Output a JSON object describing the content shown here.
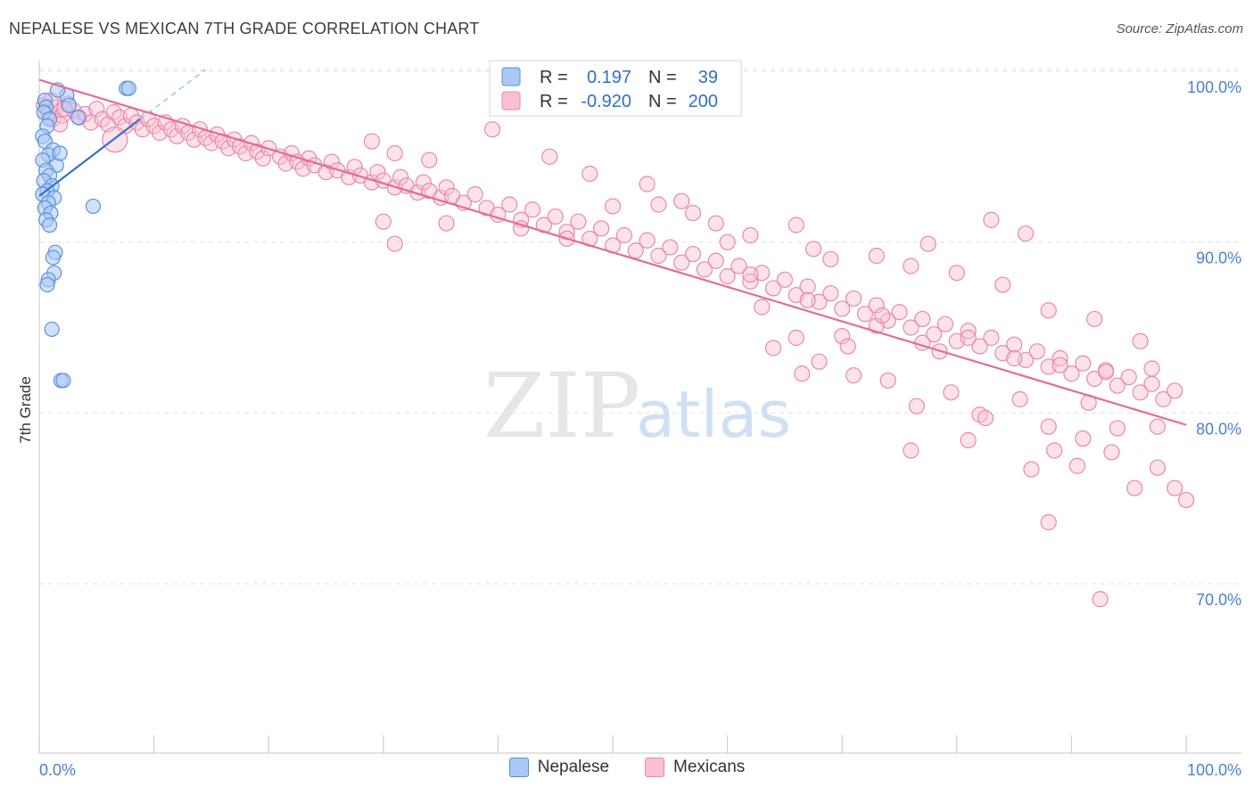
{
  "header": {
    "title": "NEPALESE VS MEXICAN 7TH GRADE CORRELATION CHART",
    "source": "Source: ZipAtlas.com"
  },
  "watermark": {
    "zip": "ZIP",
    "atlas": "atlas"
  },
  "legend_stats": [
    {
      "r_label": "R =",
      "r_value": "0.197",
      "n_label": "N =",
      "n_value": "39",
      "color": "#a9c8f5",
      "stroke": "#5b8fd9"
    },
    {
      "r_label": "R =",
      "r_value": "-0.920",
      "n_label": "N =",
      "n_value": "200",
      "color": "#f9c0d2",
      "stroke": "#e987a8"
    }
  ],
  "bottom_legend": [
    {
      "label": "Nepalese",
      "color": "#a9c8f5",
      "stroke": "#5b8fd9"
    },
    {
      "label": "Mexicans",
      "color": "#f9c0d2",
      "stroke": "#e987a8"
    }
  ],
  "chart_data": {
    "type": "scatter",
    "title": "NEPALESE VS MEXICAN 7TH GRADE CORRELATION CHART",
    "xlabel": "",
    "ylabel": "7th Grade",
    "xlim": [
      0,
      100
    ],
    "ylim": [
      60,
      101
    ],
    "x_tick_labels": [
      "0.0%",
      "100.0%"
    ],
    "y_ticks": [
      70,
      80,
      90,
      100
    ],
    "y_tick_labels": [
      "70.0%",
      "80.0%",
      "90.0%",
      "100.0%"
    ],
    "grid": true,
    "series": [
      {
        "name": "Nepalese",
        "color": "#5b8fd9",
        "fill": "#a9c8f5",
        "trend": {
          "x": [
            0,
            8.8
          ],
          "y": [
            92.7,
            97.2
          ]
        },
        "trend_ext": {
          "x": [
            8.8,
            14.5
          ],
          "y": [
            97.2,
            100.1
          ]
        },
        "points": [
          [
            0.5,
            98.3
          ],
          [
            0.6,
            97.9
          ],
          [
            0.4,
            97.6
          ],
          [
            0.9,
            97.2
          ],
          [
            0.7,
            96.8
          ],
          [
            0.3,
            96.2
          ],
          [
            0.5,
            95.9
          ],
          [
            1.2,
            95.4
          ],
          [
            0.8,
            95.1
          ],
          [
            0.3,
            94.8
          ],
          [
            1.5,
            94.5
          ],
          [
            0.6,
            94.2
          ],
          [
            0.9,
            93.9
          ],
          [
            0.4,
            93.6
          ],
          [
            1.1,
            93.3
          ],
          [
            0.7,
            93.0
          ],
          [
            0.3,
            92.8
          ],
          [
            1.3,
            92.6
          ],
          [
            0.8,
            92.3
          ],
          [
            0.5,
            92.0
          ],
          [
            1.0,
            91.7
          ],
          [
            0.6,
            91.3
          ],
          [
            0.9,
            91.0
          ],
          [
            1.4,
            89.4
          ],
          [
            1.2,
            89.1
          ],
          [
            1.3,
            88.2
          ],
          [
            0.8,
            87.8
          ],
          [
            0.7,
            87.5
          ],
          [
            1.1,
            84.9
          ],
          [
            1.9,
            81.9
          ],
          [
            2.1,
            81.9
          ],
          [
            7.6,
            99.0
          ],
          [
            7.8,
            99.0
          ],
          [
            4.7,
            92.1
          ],
          [
            3.4,
            97.3
          ],
          [
            2.4,
            98.6
          ],
          [
            1.6,
            98.9
          ],
          [
            2.6,
            98.0
          ],
          [
            1.8,
            95.2
          ]
        ]
      },
      {
        "name": "Mexicans",
        "color": "#e987a8",
        "fill": "#f9c0d2",
        "trend": {
          "x": [
            0,
            100
          ],
          "y": [
            99.5,
            79.3
          ]
        },
        "points": [
          [
            0.4,
            98.0
          ],
          [
            0.8,
            97.6
          ],
          [
            1.2,
            97.2
          ],
          [
            1.5,
            97.9
          ],
          [
            2.0,
            97.4
          ],
          [
            2.5,
            98.1
          ],
          [
            3.0,
            97.7
          ],
          [
            3.5,
            97.3
          ],
          [
            1.0,
            98.3
          ],
          [
            1.8,
            96.9
          ],
          [
            2.2,
            97.8
          ],
          [
            4.0,
            97.5
          ],
          [
            4.5,
            97.0
          ],
          [
            5.0,
            97.8
          ],
          [
            5.5,
            97.2
          ],
          [
            6.0,
            96.9
          ],
          [
            6.5,
            97.6
          ],
          [
            7.0,
            97.3
          ],
          [
            7.5,
            96.8
          ],
          [
            8.0,
            97.4
          ],
          [
            8.5,
            97.0
          ],
          [
            9.0,
            96.6
          ],
          [
            9.5,
            97.2
          ],
          [
            10.0,
            96.8
          ],
          [
            10.5,
            96.4
          ],
          [
            11.0,
            97.0
          ],
          [
            11.5,
            96.6
          ],
          [
            12.0,
            96.2
          ],
          [
            12.5,
            96.8
          ],
          [
            13.0,
            96.4
          ],
          [
            13.5,
            96.0
          ],
          [
            14.0,
            96.6
          ],
          [
            14.5,
            96.1
          ],
          [
            15.0,
            95.8
          ],
          [
            15.5,
            96.3
          ],
          [
            16.0,
            95.9
          ],
          [
            16.5,
            95.5
          ],
          [
            17.0,
            96.0
          ],
          [
            17.5,
            95.6
          ],
          [
            18.0,
            95.2
          ],
          [
            18.5,
            95.8
          ],
          [
            19.0,
            95.3
          ],
          [
            19.5,
            94.9
          ],
          [
            20.0,
            95.5
          ],
          [
            21.0,
            95.0
          ],
          [
            21.5,
            94.6
          ],
          [
            22.0,
            95.2
          ],
          [
            22.5,
            94.7
          ],
          [
            23.0,
            94.3
          ],
          [
            23.5,
            94.9
          ],
          [
            24.0,
            94.5
          ],
          [
            25.0,
            94.1
          ],
          [
            25.5,
            94.7
          ],
          [
            26.0,
            94.2
          ],
          [
            27.0,
            93.8
          ],
          [
            27.5,
            94.4
          ],
          [
            28.0,
            93.9
          ],
          [
            29.0,
            93.5
          ],
          [
            29.5,
            94.1
          ],
          [
            30.0,
            93.6
          ],
          [
            31.0,
            93.2
          ],
          [
            31.5,
            93.8
          ],
          [
            32.0,
            93.3
          ],
          [
            33.0,
            92.9
          ],
          [
            33.5,
            93.5
          ],
          [
            34.0,
            93.0
          ],
          [
            35.0,
            92.6
          ],
          [
            35.5,
            93.2
          ],
          [
            36.0,
            92.7
          ],
          [
            37.0,
            92.3
          ],
          [
            38.0,
            92.8
          ],
          [
            39.0,
            92.0
          ],
          [
            40.0,
            91.6
          ],
          [
            41.0,
            92.2
          ],
          [
            42.0,
            91.3
          ],
          [
            43.0,
            91.9
          ],
          [
            44.0,
            91.0
          ],
          [
            45.0,
            91.5
          ],
          [
            46.0,
            90.6
          ],
          [
            47.0,
            91.2
          ],
          [
            48.0,
            90.2
          ],
          [
            49.0,
            90.8
          ],
          [
            50.0,
            89.8
          ],
          [
            51.0,
            90.4
          ],
          [
            52.0,
            89.5
          ],
          [
            53.0,
            90.1
          ],
          [
            54.0,
            89.2
          ],
          [
            55.0,
            89.7
          ],
          [
            56.0,
            88.8
          ],
          [
            57.0,
            89.3
          ],
          [
            58.0,
            88.4
          ],
          [
            59.0,
            88.9
          ],
          [
            60.0,
            88.0
          ],
          [
            61.0,
            88.6
          ],
          [
            62.0,
            87.7
          ],
          [
            63.0,
            88.2
          ],
          [
            64.0,
            87.3
          ],
          [
            65.0,
            87.8
          ],
          [
            66.0,
            86.9
          ],
          [
            67.0,
            87.4
          ],
          [
            68.0,
            86.5
          ],
          [
            69.0,
            87.0
          ],
          [
            70.0,
            86.1
          ],
          [
            71.0,
            86.7
          ],
          [
            72.0,
            85.8
          ],
          [
            73.0,
            86.3
          ],
          [
            74.0,
            85.4
          ],
          [
            75.0,
            85.9
          ],
          [
            76.0,
            85.0
          ],
          [
            77.0,
            85.5
          ],
          [
            78.0,
            84.6
          ],
          [
            79.0,
            85.2
          ],
          [
            80.0,
            84.2
          ],
          [
            81.0,
            84.8
          ],
          [
            82.0,
            83.9
          ],
          [
            83.0,
            84.4
          ],
          [
            84.0,
            83.5
          ],
          [
            85.0,
            84.0
          ],
          [
            86.0,
            83.1
          ],
          [
            87.0,
            83.6
          ],
          [
            88.0,
            82.7
          ],
          [
            89.0,
            83.2
          ],
          [
            90.0,
            82.3
          ],
          [
            91.0,
            82.9
          ],
          [
            92.0,
            82.0
          ],
          [
            93.0,
            82.5
          ],
          [
            94.0,
            81.6
          ],
          [
            95.0,
            82.1
          ],
          [
            96.0,
            81.2
          ],
          [
            97.0,
            81.7
          ],
          [
            98.0,
            80.8
          ],
          [
            99.0,
            81.3
          ],
          [
            6.6,
            96.0
          ],
          [
            29.0,
            95.9
          ],
          [
            31.0,
            95.2
          ],
          [
            34.0,
            94.8
          ],
          [
            39.5,
            96.6
          ],
          [
            44.5,
            95.0
          ],
          [
            48.0,
            94.0
          ],
          [
            53.0,
            93.4
          ],
          [
            56.0,
            92.4
          ],
          [
            59.0,
            91.1
          ],
          [
            62.0,
            90.4
          ],
          [
            66.0,
            91.0
          ],
          [
            69.0,
            89.0
          ],
          [
            73.0,
            89.2
          ],
          [
            76.0,
            88.6
          ],
          [
            80.0,
            88.2
          ],
          [
            84.0,
            87.5
          ],
          [
            88.0,
            86.0
          ],
          [
            92.0,
            85.5
          ],
          [
            96.0,
            84.2
          ],
          [
            30.0,
            91.2
          ],
          [
            31.0,
            89.9
          ],
          [
            35.5,
            91.1
          ],
          [
            42.0,
            90.8
          ],
          [
            46.0,
            90.2
          ],
          [
            50.0,
            92.1
          ],
          [
            54.0,
            92.2
          ],
          [
            57.0,
            91.7
          ],
          [
            60.0,
            90.0
          ],
          [
            63.0,
            86.2
          ],
          [
            67.0,
            86.6
          ],
          [
            70.0,
            84.5
          ],
          [
            73.0,
            85.1
          ],
          [
            77.0,
            84.1
          ],
          [
            81.0,
            84.4
          ],
          [
            85.0,
            83.2
          ],
          [
            89.0,
            82.8
          ],
          [
            93.0,
            82.4
          ],
          [
            97.0,
            82.6
          ],
          [
            64.0,
            83.8
          ],
          [
            66.5,
            82.3
          ],
          [
            68.0,
            83.0
          ],
          [
            71.0,
            82.2
          ],
          [
            74.0,
            81.9
          ],
          [
            76.5,
            80.4
          ],
          [
            79.5,
            81.2
          ],
          [
            82.0,
            79.9
          ],
          [
            85.5,
            80.8
          ],
          [
            88.0,
            79.2
          ],
          [
            91.5,
            80.6
          ],
          [
            94.0,
            79.1
          ],
          [
            97.5,
            79.2
          ],
          [
            76.0,
            77.8
          ],
          [
            81.0,
            78.4
          ],
          [
            86.5,
            76.7
          ],
          [
            88.5,
            77.8
          ],
          [
            91.0,
            78.5
          ],
          [
            93.5,
            77.7
          ],
          [
            95.5,
            75.6
          ],
          [
            97.5,
            76.8
          ],
          [
            99.0,
            75.6
          ],
          [
            88.0,
            73.6
          ],
          [
            92.5,
            69.1
          ],
          [
            100.0,
            74.9
          ],
          [
            82.5,
            79.7
          ],
          [
            90.5,
            76.9
          ],
          [
            70.5,
            83.9
          ],
          [
            73.5,
            85.7
          ],
          [
            78.5,
            83.6
          ],
          [
            66.0,
            84.4
          ],
          [
            62.0,
            88.1
          ],
          [
            86.0,
            90.5
          ],
          [
            83.0,
            91.3
          ],
          [
            77.5,
            89.9
          ],
          [
            67.5,
            89.6
          ]
        ]
      }
    ]
  }
}
